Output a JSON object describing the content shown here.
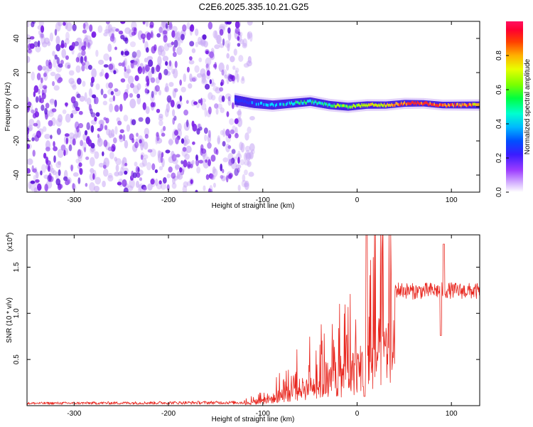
{
  "title": "C2E6.2025.335.10.21.G25",
  "colors": {
    "snr_line": "#e8261e",
    "frame": "#000000",
    "scatter_noise": "#7a1fe6"
  },
  "chart_data": [
    {
      "type": "heatmap",
      "name": "spectrogram",
      "xlabel": "Height of straight line (km)",
      "ylabel": "Frequency (Hz)",
      "xlim": [
        -350,
        130
      ],
      "ylim": [
        -50,
        50
      ],
      "xticks": [
        -300,
        -200,
        -100,
        0,
        100
      ],
      "yticks": [
        -40,
        -20,
        0,
        20,
        40
      ],
      "colorbar": {
        "label": "Normalized spectral amplitude",
        "range": [
          0,
          1
        ],
        "ticks": [
          "0.0",
          "0.2",
          "0.4",
          "0.6",
          "0.8"
        ],
        "tick_values": [
          0.0,
          0.2,
          0.4,
          0.6,
          0.8
        ]
      },
      "noise_region_x": [
        -350,
        -125
      ],
      "signal_onset_x": -130,
      "signal_track": {
        "x": [
          -130,
          -110,
          -90,
          -70,
          -50,
          -30,
          -10,
          10,
          30,
          50,
          70,
          90,
          110,
          130
        ],
        "freq_hz": [
          4,
          2,
          1,
          2,
          3,
          1,
          0,
          1,
          1,
          2,
          2,
          1,
          1,
          1
        ],
        "amplitude": [
          0.3,
          0.35,
          0.4,
          0.45,
          0.5,
          0.55,
          0.6,
          0.7,
          0.75,
          0.8,
          0.9,
          0.85,
          0.8,
          0.75
        ]
      }
    },
    {
      "type": "line",
      "name": "snr",
      "xlabel": "Height of straight line (km)",
      "ylabel": "SNR (10 * v/v)",
      "scale_label": "(x10",
      "scale_exp": "4",
      "scale_close": ")",
      "xlim": [
        -350,
        130
      ],
      "ylim": [
        0,
        18500
      ],
      "xticks": [
        -300,
        -200,
        -100,
        0,
        100
      ],
      "yticks": [
        5000,
        10000,
        15000
      ],
      "ytick_labels": [
        "0.5",
        "1.0",
        "1.5"
      ],
      "envelope_x": [
        -350,
        -120,
        -100,
        -80,
        -60,
        -40,
        -20,
        0,
        10,
        20,
        40,
        60,
        80,
        100,
        130
      ],
      "envelope_y": [
        300,
        400,
        1000,
        2000,
        3500,
        4500,
        5500,
        7500,
        8800,
        11000,
        12700,
        12500,
        12600,
        12600,
        12500
      ],
      "spikes": [
        {
          "x": 10,
          "y": 18500
        },
        {
          "x": 8,
          "y": 1000
        },
        {
          "x": 92,
          "y": 17500
        },
        {
          "x": 89,
          "y": 7600
        }
      ]
    }
  ]
}
